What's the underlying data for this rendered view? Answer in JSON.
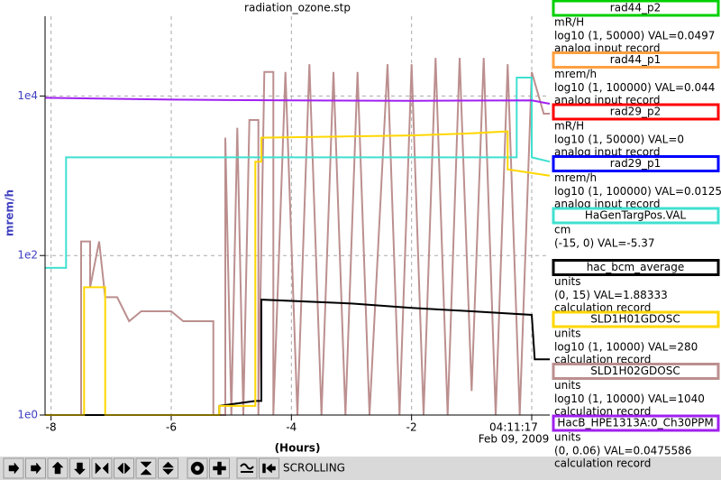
{
  "chart_data": {
    "type": "line",
    "title": "radiation_ozone.stp",
    "xlabel": "(Hours)",
    "ylabel": "mrem/h",
    "date_label": "Feb 09, 2009",
    "xlim": [
      -8.1,
      0.3
    ],
    "xticks": [
      -8,
      -6,
      -4,
      -2,
      {
        "value": 0,
        "label": "04:11:17"
      }
    ],
    "ylim": [
      1,
      100000
    ],
    "yticks": [
      {
        "value": 1,
        "label": "1e0"
      },
      {
        "value": 100,
        "label": "1e2"
      },
      {
        "value": 10000,
        "label": "1e4"
      }
    ],
    "log_scale": "y",
    "grid": true,
    "series": [
      {
        "name": "rad44_p2",
        "color": "#00d000",
        "units": "mR/H",
        "range": "log10 (1, 50000)  VAL=0.0497",
        "record": "analog input record"
      },
      {
        "name": "rad44_p1",
        "color": "#ffa040",
        "units": "mrem/h",
        "range": "log10 (1, 100000)  VAL=0.044",
        "record": "analog input record"
      },
      {
        "name": "rad29_p2",
        "color": "#ff0000",
        "units": "mR/H",
        "range": "log10 (1, 50000)  VAL=0",
        "record": "analog input record"
      },
      {
        "name": "rad29_p1",
        "color": "#0000ff",
        "units": "mrem/h",
        "range": "log10 (1, 100000)  VAL=0.0125",
        "record": "analog input record"
      },
      {
        "name": "HaGenTargPos.VAL",
        "color": "#40e0d0",
        "units": "cm",
        "range": "(-15, 0)  VAL=-5.37",
        "x": [
          -8.1,
          -7.75,
          -7.75,
          -0.25,
          -0.25,
          0.0,
          0.0,
          0.3
        ],
        "values": [
          70,
          70,
          1700,
          1700,
          17000,
          17000,
          1700,
          1500
        ]
      },
      {
        "name": "hac_bcm_average",
        "color": "#000000",
        "units": "units",
        "range": "(0, 15)  VAL=1.88333",
        "record": "calculation record",
        "x": [
          -8.1,
          -5.2,
          -5.2,
          -4.6,
          -4.5,
          -4.5,
          -3.0,
          -2.0,
          -1.0,
          0.0,
          0.05,
          0.3
        ],
        "values": [
          1,
          1,
          1.3,
          1.5,
          1.5,
          28,
          25,
          22,
          20,
          18,
          5,
          5
        ]
      },
      {
        "name": "SLD1H01GDOSC",
        "color": "#ffd700",
        "units": "units",
        "range": "log10 (1, 10000)  VAL=280",
        "record": "calculation record",
        "x": [
          -8.1,
          -7.45,
          -7.45,
          -7.1,
          -7.1,
          -5.2,
          -5.2,
          -4.6,
          -4.6,
          -4.5,
          -4.5,
          -2.0,
          -1.0,
          -0.4,
          -0.4,
          0.3
        ],
        "values": [
          1,
          1,
          40,
          40,
          1,
          1,
          1.3,
          1.3,
          1500,
          1500,
          3000,
          3200,
          3400,
          3600,
          1200,
          1000
        ]
      },
      {
        "name": "SLD1H02GDOSC",
        "color": "#bc8f8f",
        "units": "units",
        "range": "log10 (1, 10000)  VAL=1040",
        "record": "calculation record",
        "x": [
          -8.1,
          -7.5,
          -7.5,
          -7.35,
          -7.35,
          -7.2,
          -7.1,
          -6.9,
          -6.7,
          -6.5,
          -6.0,
          -5.8,
          -5.3,
          -5.3,
          -5.1,
          -5.1,
          -5.0,
          -4.9,
          -4.8,
          -4.7,
          -4.55,
          -4.55,
          -4.45,
          -4.3,
          -4.3,
          -4.1,
          -3.9,
          -3.7,
          -3.5,
          -3.3,
          -3.1,
          -2.9,
          -2.7,
          -2.4,
          -2.2,
          -2.0,
          -1.8,
          -1.6,
          -1.4,
          -1.2,
          -1.0,
          -0.8,
          -0.6,
          -0.4,
          -0.2,
          0.0,
          0.2,
          0.3
        ],
        "values": [
          1,
          1,
          150,
          150,
          40,
          150,
          30,
          30,
          15,
          20,
          20,
          15,
          15,
          1,
          1,
          3000,
          1,
          4000,
          1,
          5000,
          5000,
          1,
          20000,
          20000,
          1,
          20000,
          1,
          25000,
          1,
          20000,
          1,
          20000,
          1,
          25000,
          1,
          25000,
          1,
          30000,
          1,
          30000,
          2,
          30000,
          1,
          25000,
          1,
          20000,
          6000,
          6000
        ]
      },
      {
        "name": "HacB_HPE1313A:0_Ch30PPM",
        "color": "#a020f0",
        "units": "units",
        "range": "(0, 0.06)  VAL=0.0475586",
        "record": "calculation record",
        "x": [
          -8.1,
          -6,
          -4,
          -2,
          0,
          0.3
        ],
        "values": [
          9500,
          9000,
          8800,
          8700,
          8800,
          8000
        ]
      }
    ]
  },
  "toolbar": {
    "status": "SCROLLING"
  }
}
